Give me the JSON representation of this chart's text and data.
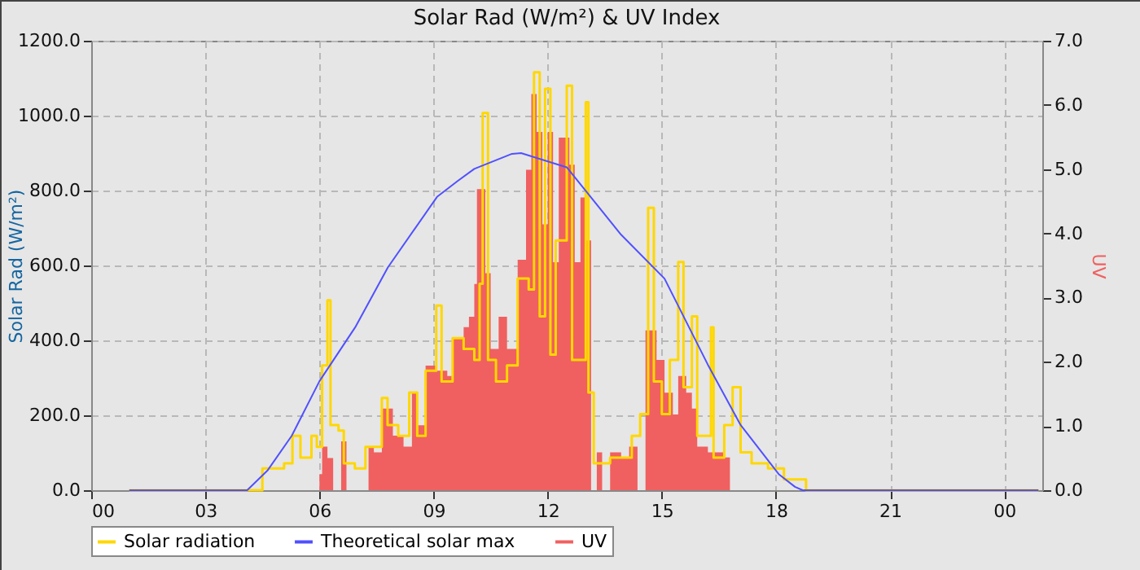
{
  "chart_data": {
    "type": "line",
    "title": "Solar Rad (W/m²) &  UV Index",
    "ylabel": "Solar Rad (W/m²)",
    "y2label": "UV",
    "xlim": [
      0,
      25
    ],
    "xticks": [
      {
        "value": 0,
        "label": "00"
      },
      {
        "value": 3,
        "label": "03"
      },
      {
        "value": 6,
        "label": "06"
      },
      {
        "value": 9,
        "label": "09"
      },
      {
        "value": 12,
        "label": "12"
      },
      {
        "value": 15,
        "label": "15"
      },
      {
        "value": 18,
        "label": "18"
      },
      {
        "value": 21,
        "label": "21"
      },
      {
        "value": 24,
        "label": "00"
      }
    ],
    "ylim": [
      0,
      1200
    ],
    "yticks": [
      {
        "value": 0,
        "label": "0.0"
      },
      {
        "value": 200,
        "label": "200.0"
      },
      {
        "value": 400,
        "label": "400.0"
      },
      {
        "value": 600,
        "label": "600.0"
      },
      {
        "value": 800,
        "label": "800.0"
      },
      {
        "value": 1000,
        "label": "1000.0"
      },
      {
        "value": 1200,
        "label": "1200.0"
      }
    ],
    "y2lim": [
      0,
      7
    ],
    "y2ticks": [
      {
        "value": 0,
        "label": "0.0"
      },
      {
        "value": 1,
        "label": "1.0"
      },
      {
        "value": 2,
        "label": "2.0"
      },
      {
        "value": 3,
        "label": "3.0"
      },
      {
        "value": 4,
        "label": "4.0"
      },
      {
        "value": 5,
        "label": "5.0"
      },
      {
        "value": 6,
        "label": "6.0"
      },
      {
        "value": 7,
        "label": "7.0"
      }
    ],
    "grid": true,
    "legend": "bottom",
    "series": [
      {
        "name": "Solar radiation",
        "type": "step",
        "color": "#ffd700",
        "x": [
          1,
          3.93,
          4.5,
          5.07,
          5.29,
          5.5,
          5.79,
          5.93,
          6.07,
          6.21,
          6.29,
          6.5,
          6.64,
          6.93,
          7.21,
          7.64,
          7.79,
          8.07,
          8.36,
          8.57,
          8.79,
          9.07,
          9.21,
          9.5,
          9.79,
          10.07,
          10.21,
          10.29,
          10.43,
          10.64,
          10.93,
          11.21,
          11.5,
          11.64,
          11.79,
          11.93,
          12.07,
          12.21,
          12.5,
          12.64,
          13.0,
          13.07,
          13.21,
          13.64,
          14.21,
          14.43,
          14.64,
          14.79,
          15.0,
          15.21,
          15.43,
          15.57,
          15.79,
          15.93,
          16.29,
          16.36,
          16.64,
          16.86,
          17.07,
          17.36,
          17.79,
          18.21,
          18.79,
          24.9
        ],
        "values": [
          0,
          0,
          58,
          72,
          145,
          87,
          145,
          116,
          333,
          507,
          174,
          159,
          72,
          58,
          116,
          246,
          174,
          145,
          261,
          145,
          319,
          493,
          290,
          406,
          377,
          348,
          551,
          1007,
          348,
          290,
          333,
          565,
          536,
          1116,
          464,
          1072,
          362,
          667,
          1080,
          348,
          1036,
          261,
          72,
          87,
          145,
          203,
          754,
          290,
          203,
          348,
          609,
          275,
          464,
          145,
          435,
          87,
          174,
          275,
          101,
          72,
          58,
          29,
          0,
          0
        ]
      },
      {
        "name": "Theoretical solar max",
        "type": "line",
        "color": "#5050ff",
        "x": [
          1,
          4.1,
          4.63,
          5.27,
          6.0,
          6.94,
          7.8,
          9.09,
          9.64,
          10.07,
          11.06,
          11.3,
          12.5,
          13.93,
          15.07,
          16.21,
          17.07,
          18.07,
          18.5,
          18.7,
          24.9
        ],
        "values": [
          0,
          0,
          52,
          145,
          291,
          435,
          595,
          783,
          826,
          858,
          898,
          900,
          862,
          682,
          565,
          335,
          174,
          43,
          9,
          0,
          0
        ]
      },
      {
        "name": "UV",
        "type": "area",
        "axis": "y2",
        "color": "#f06060",
        "x": [
          1,
          6.0,
          6.07,
          6.21,
          6.36,
          6.57,
          6.71,
          7.21,
          7.29,
          7.43,
          7.64,
          7.93,
          8.21,
          8.43,
          8.57,
          8.79,
          9.07,
          9.36,
          9.5,
          9.79,
          9.93,
          10.07,
          10.14,
          10.36,
          10.5,
          10.71,
          10.93,
          11.21,
          11.43,
          11.57,
          11.71,
          11.86,
          12.0,
          12.14,
          12.29,
          12.36,
          12.57,
          12.71,
          12.86,
          13.0,
          13.14,
          13.29,
          13.43,
          13.64,
          13.93,
          14.14,
          14.36,
          14.57,
          14.86,
          15.07,
          15.29,
          15.43,
          15.64,
          15.79,
          15.93,
          16.21,
          16.64,
          16.79,
          24.9
        ],
        "values": [
          0,
          0.25,
          0.68,
          0.5,
          0,
          0.76,
          0,
          0,
          0.68,
          0.59,
          1.27,
          0.85,
          0.68,
          1.52,
          1.01,
          1.94,
          1.86,
          1.78,
          2.37,
          2.54,
          2.7,
          3.21,
          4.69,
          3.38,
          2.2,
          2.7,
          2.2,
          3.59,
          4.99,
          6.17,
          5.58,
          4.14,
          5.58,
          3.55,
          5.49,
          5.49,
          5.07,
          3.55,
          4.56,
          3.89,
          0,
          0.59,
          0,
          0.59,
          0.51,
          0.68,
          0,
          2.49,
          2.03,
          1.52,
          1.18,
          1.78,
          1.52,
          1.27,
          0.68,
          0.59,
          0.51,
          0,
          0
        ]
      }
    ]
  }
}
